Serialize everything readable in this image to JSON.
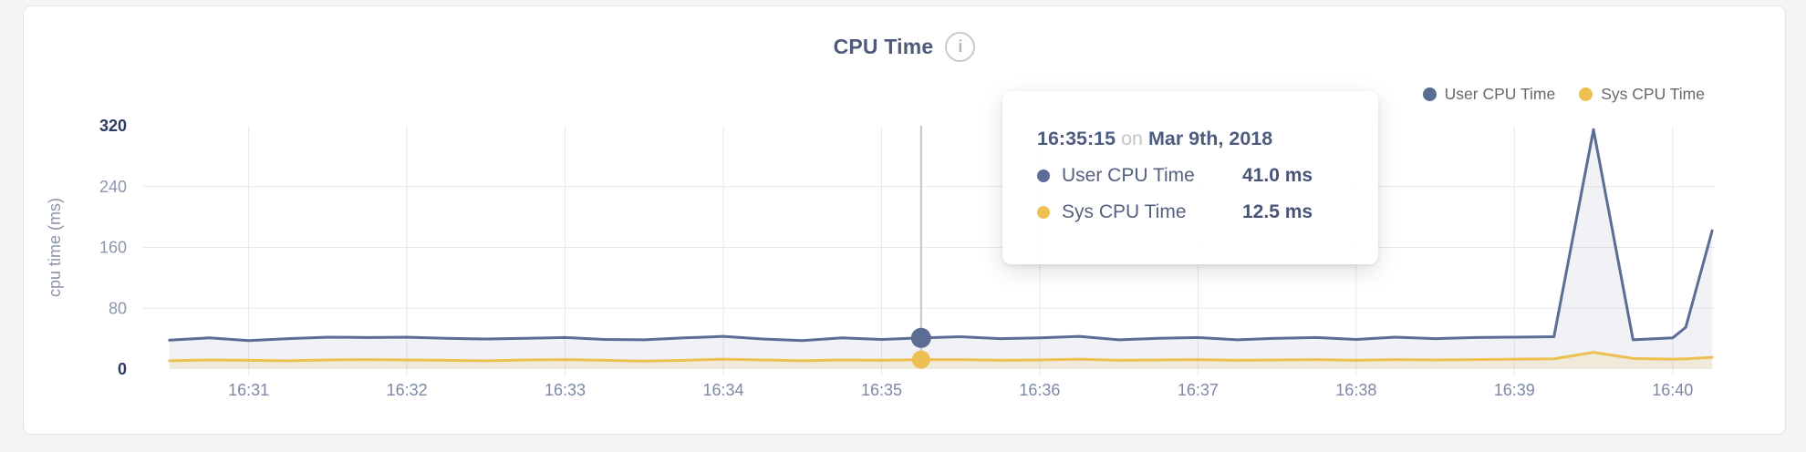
{
  "header": {
    "title": "CPU Time",
    "info_icon": "i"
  },
  "legend": {
    "items": [
      {
        "label": "User CPU Time",
        "color": "#5b6d94"
      },
      {
        "label": "Sys CPU Time",
        "color": "#eec052"
      }
    ]
  },
  "tooltip": {
    "time": "16:35:15",
    "preposition": "on",
    "date": "Mar 9th, 2018",
    "rows": [
      {
        "label": "User CPU Time",
        "value": "41.0 ms",
        "color": "#5b6d94"
      },
      {
        "label": "Sys CPU Time",
        "value": "12.5 ms",
        "color": "#eec052"
      }
    ]
  },
  "chart_data": {
    "type": "area",
    "title": "CPU Time",
    "xlabel": "",
    "ylabel": "cpu time (ms)",
    "ylim": [
      0,
      320
    ],
    "y_ticks": [
      0,
      80,
      160,
      240,
      320
    ],
    "x_ticks": [
      "16:31",
      "16:32",
      "16:33",
      "16:34",
      "16:35",
      "16:36",
      "16:37",
      "16:38",
      "16:39",
      "16:40"
    ],
    "x_domain": [
      "16:30:20",
      "16:40:16"
    ],
    "grid": true,
    "legend_position": "top-right",
    "x": [
      "16:30:30",
      "16:30:45",
      "16:31:00",
      "16:31:15",
      "16:31:30",
      "16:31:45",
      "16:32:00",
      "16:32:15",
      "16:32:30",
      "16:32:45",
      "16:33:00",
      "16:33:15",
      "16:33:30",
      "16:33:45",
      "16:34:00",
      "16:34:15",
      "16:34:30",
      "16:34:45",
      "16:35:00",
      "16:35:15",
      "16:35:30",
      "16:35:45",
      "16:36:00",
      "16:36:15",
      "16:36:30",
      "16:36:45",
      "16:37:00",
      "16:37:15",
      "16:37:30",
      "16:37:45",
      "16:38:00",
      "16:38:15",
      "16:38:30",
      "16:38:45",
      "16:39:00",
      "16:39:15",
      "16:39:30",
      "16:39:45",
      "16:40:00",
      "16:40:05",
      "16:40:15"
    ],
    "series": [
      {
        "name": "User CPU Time",
        "color": "#5b6d94",
        "fill": "rgba(91,109,148,0.09)",
        "line_width": 3,
        "values": [
          38,
          41,
          37.5,
          40,
          42,
          41.5,
          42,
          40.5,
          39.5,
          40.5,
          41.5,
          39,
          38.5,
          41,
          43,
          39.5,
          37.5,
          41,
          39,
          41,
          42.5,
          40,
          41,
          43,
          38.5,
          40.5,
          41.5,
          38.5,
          40.5,
          41.5,
          39,
          42,
          40,
          41.5,
          42,
          42.5,
          315,
          38.5,
          41,
          55,
          182
        ]
      },
      {
        "name": "Sys CPU Time",
        "color": "#eec052",
        "fill": "rgba(238,192,82,0.16)",
        "line_width": 3,
        "values": [
          11,
          12,
          11.5,
          11,
          12,
          12.5,
          12,
          11.5,
          11,
          12,
          12.5,
          11.5,
          10.5,
          11.5,
          13,
          12,
          11,
          12,
          11.5,
          12.5,
          12.5,
          11.5,
          12,
          13,
          11.5,
          12,
          12.5,
          11.5,
          12,
          12.5,
          11.5,
          12.5,
          12,
          12.5,
          13,
          13.5,
          22,
          14,
          13,
          13.5,
          15.5
        ]
      }
    ],
    "selected": {
      "time": "16:35:15",
      "index": 19,
      "user_value_ms": 41.0,
      "sys_value_ms": 12.5,
      "hover_line_color": "#c5c5c8"
    },
    "colors": {
      "grid": "#e9e9eb",
      "x_tick_label": "#7d89a3",
      "y_tick_label_minor": "#8c96ac",
      "y_tick_label_extreme": "#2c3b63",
      "axis_title": "#8b95ab"
    }
  }
}
